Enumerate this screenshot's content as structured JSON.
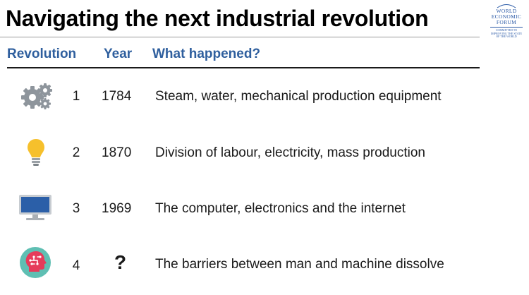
{
  "slide": {
    "title": "Navigating the next industrial revolution",
    "logo": {
      "lines": [
        "WORLD",
        "ECONOMIC",
        "FORUM"
      ],
      "tagline": [
        "COMMITTED TO",
        "IMPROVING THE STATE",
        "OF THE WORLD"
      ]
    }
  },
  "table": {
    "headers": [
      "Revolution",
      "Year",
      "What happened?"
    ],
    "rows": [
      {
        "number": "1",
        "year": "1784",
        "description": "Steam, water, mechanical production equipment",
        "icon": "gears-icon"
      },
      {
        "number": "2",
        "year": "1870",
        "description": "Division of labour, electricity, mass production",
        "icon": "light-bulb-icon"
      },
      {
        "number": "3",
        "year": "1969",
        "description": "The computer, electronics and the internet",
        "icon": "computer-monitor-icon"
      },
      {
        "number": "4",
        "year": "?",
        "description": "The barriers between man and machine dissolve",
        "icon": "brain-head-icon"
      }
    ]
  },
  "colors": {
    "header_text": "#2f5f9e",
    "gear": "#8e959c",
    "bulb": "#f6c02c",
    "monitor": "#2b5fa8",
    "head_bg": "#5fbfb3",
    "head": "#e63b5a"
  }
}
